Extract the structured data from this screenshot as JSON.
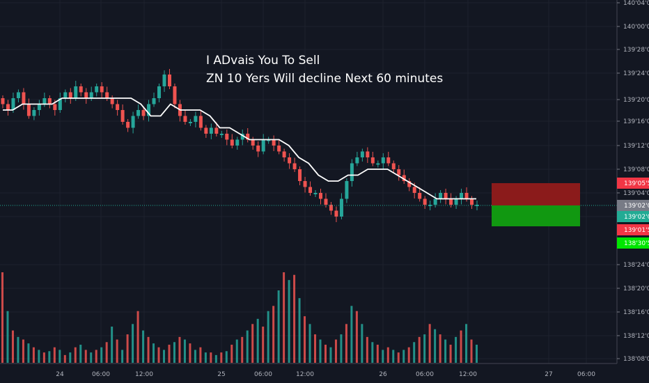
{
  "chart_data": {
    "type": "candlestick",
    "annotation": {
      "line1": "I ADvais You To Sell",
      "line2": "ZN 10 Yers Will decline Next 60 minutes"
    },
    "y_axis": {
      "ticks": [
        "140'04'0",
        "140'00'0",
        "139'28'0",
        "139'24'0",
        "139'20'0",
        "139'16'0",
        "139'12'0",
        "139'08'0",
        "139'04'0",
        "139'02'0",
        "138'24'0",
        "138'20'0",
        "138'16'0",
        "138'12'0",
        "138'08'0"
      ],
      "price_tags": [
        {
          "label": "139'05'5",
          "color": "#f23645"
        },
        {
          "label": "139'02'0",
          "color": "#787b86"
        },
        {
          "label": "139'02'0",
          "color": "#22ab94"
        },
        {
          "label": "139'01'5",
          "color": "#f23645"
        },
        {
          "label": "138'30'5",
          "color": "#00e600"
        }
      ]
    },
    "x_axis": {
      "ticks": [
        "24",
        "06:00",
        "12:00",
        "25",
        "06:00",
        "12:00",
        "26",
        "06:00",
        "12:00",
        "27",
        "06:00"
      ]
    },
    "close_series": [
      139.19,
      139.18,
      139.2,
      139.21,
      139.19,
      139.17,
      139.18,
      139.19,
      139.2,
      139.19,
      139.18,
      139.2,
      139.21,
      139.2,
      139.22,
      139.21,
      139.2,
      139.21,
      139.22,
      139.21,
      139.2,
      139.19,
      139.18,
      139.16,
      139.15,
      139.17,
      139.18,
      139.17,
      139.19,
      139.2,
      139.22,
      139.24,
      139.22,
      139.19,
      139.17,
      139.16,
      139.16,
      139.17,
      139.15,
      139.14,
      139.15,
      139.14,
      139.14,
      139.13,
      139.12,
      139.13,
      139.14,
      139.13,
      139.12,
      139.11,
      139.13,
      139.13,
      139.12,
      139.11,
      139.1,
      139.09,
      139.08,
      139.06,
      139.05,
      139.04,
      139.04,
      139.03,
      139.02,
      139.01,
      139.0,
      139.03,
      139.06,
      139.09,
      139.1,
      139.11,
      139.1,
      139.09,
      139.09,
      139.1,
      139.09,
      139.08,
      139.07,
      139.06,
      139.05,
      139.04,
      139.03,
      139.02,
      139.02,
      139.03,
      139.04,
      139.03,
      139.02,
      139.03,
      139.04,
      139.03,
      139.02,
      139.02
    ],
    "ma_series": [
      139.18,
      139.18,
      139.19,
      139.19,
      139.19,
      139.19,
      139.2,
      139.2,
      139.2,
      139.2,
      139.2,
      139.2,
      139.2,
      139.2,
      139.19,
      139.17,
      139.17,
      139.19,
      139.18,
      139.18,
      139.18,
      139.17,
      139.15,
      139.15,
      139.14,
      139.13,
      139.13,
      139.13,
      139.13,
      139.12,
      139.1,
      139.09,
      139.07,
      139.06,
      139.06,
      139.07,
      139.07,
      139.08,
      139.08,
      139.08,
      139.07,
      139.06,
      139.05,
      139.04,
      139.03,
      139.03,
      139.03,
      139.03,
      139.03
    ],
    "volume": [
      70,
      40,
      25,
      20,
      18,
      15,
      12,
      10,
      8,
      9,
      12,
      10,
      6,
      8,
      12,
      14,
      10,
      8,
      10,
      12,
      16,
      28,
      18,
      10,
      22,
      30,
      40,
      25,
      20,
      15,
      12,
      10,
      14,
      16,
      20,
      18,
      15,
      10,
      12,
      8,
      8,
      6,
      8,
      9,
      14,
      18,
      20,
      25,
      30,
      34,
      28,
      40,
      44,
      56,
      70,
      64,
      68,
      50,
      36,
      30,
      22,
      18,
      14,
      12,
      18,
      22,
      30,
      44,
      40,
      30,
      20,
      16,
      14,
      10,
      12,
      10,
      8,
      10,
      12,
      16,
      20,
      22,
      30,
      26,
      22,
      18,
      14,
      20,
      25,
      30,
      18,
      14
    ],
    "sell_zone": {
      "color_upper": "#8b1b1b",
      "color_lower": "#119811"
    },
    "ylim": [
      138.08,
      140.04
    ],
    "grid": "on"
  }
}
